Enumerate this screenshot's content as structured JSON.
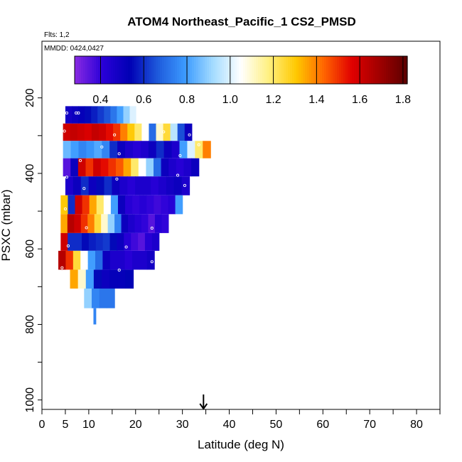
{
  "chart_data": {
    "type": "heatmap",
    "title": "ATOM4 Northeast_Pacific_1 CS2_PMSD",
    "flights_label": "Flts: 1,2",
    "mmdd_label": "MMDD: 0424,0427",
    "xlabel": "Latitude (deg N)",
    "ylabel": "PSXC (mbar)",
    "xlim": [
      0,
      85
    ],
    "ylim": [
      1025,
      50
    ],
    "x_ticks": [
      0,
      5,
      10,
      20,
      30,
      40,
      50,
      60,
      70,
      80
    ],
    "y_ticks": [
      200,
      400,
      600,
      800,
      1000
    ],
    "arrow_latitude": 34.5,
    "colorbar": {
      "range": [
        0.28,
        1.82
      ],
      "ticks": [
        0.4,
        0.6,
        0.8,
        1.0,
        1.2,
        1.4,
        1.6,
        1.8
      ],
      "tick_labels": [
        "0.4",
        "0.6",
        "0.8",
        "1.0",
        "1.2",
        "1.4",
        "1.6",
        "1.8"
      ],
      "colors": [
        "#8a2be2",
        "#2a00d8",
        "#0000b4",
        "#1e5adc",
        "#3c9bff",
        "#a5dcff",
        "#ffffff",
        "#fff080",
        "#ffc800",
        "#ff6400",
        "#e10000",
        "#a00000",
        "#5a0000"
      ]
    },
    "rows": [
      {
        "p_top": 222,
        "p_bot": 268,
        "lat_start": 5,
        "lat_end": 21.5,
        "values": [
          0.48,
          0.5,
          0.52,
          0.55,
          0.58,
          0.62,
          0.66,
          0.72,
          0.8,
          0.9,
          1.0,
          1.05
        ]
      },
      {
        "p_top": 268,
        "p_bot": 314,
        "lat_start": 4.5,
        "lat_end": 32,
        "values": [
          1.6,
          1.62,
          1.6,
          1.58,
          1.62,
          1.6,
          1.55,
          1.5,
          1.4,
          1.3,
          1.2,
          1.05,
          0.7,
          1.1,
          1.25,
          0.95,
          0.65,
          0.5
        ]
      },
      {
        "p_top": 314,
        "p_bot": 360,
        "lat_start": 4.5,
        "lat_end": 36,
        "values": [
          0.85,
          0.8,
          0.75,
          0.78,
          0.82,
          0.75,
          0.6,
          0.5,
          0.45,
          0.42,
          0.45,
          0.5,
          0.6,
          0.5,
          0.45,
          0.8,
          1.0,
          1.2,
          1.4
        ]
      },
      {
        "p_top": 360,
        "p_bot": 408,
        "lat_start": 4.5,
        "lat_end": 33.5,
        "values": [
          0.35,
          0.5,
          1.6,
          1.5,
          1.6,
          1.55,
          1.5,
          1.45,
          1.35,
          1.2,
          1.05,
          0.9,
          0.7,
          0.5,
          0.45,
          0.42,
          0.45,
          0.5
        ]
      },
      {
        "p_top": 408,
        "p_bot": 458,
        "lat_start": 5,
        "lat_end": 31.5,
        "values": [
          0.45,
          0.5,
          0.6,
          0.5,
          0.55,
          0.6,
          0.5,
          0.45,
          0.42,
          0.45,
          0.45,
          0.42,
          0.45,
          0.48,
          0.5,
          0.45
        ]
      },
      {
        "p_top": 458,
        "p_bot": 508,
        "lat_start": 4,
        "lat_end": 30,
        "values": [
          1.3,
          0.6,
          1.6,
          1.5,
          1.35,
          1.2,
          1.05,
          0.8,
          0.5,
          0.42,
          0.4,
          0.42,
          0.4,
          0.38,
          0.4,
          0.42,
          0.8
        ]
      },
      {
        "p_top": 508,
        "p_bot": 558,
        "lat_start": 4,
        "lat_end": 27,
        "values": [
          1.35,
          1.65,
          1.6,
          1.5,
          1.4,
          1.25,
          1.1,
          0.9,
          0.75,
          0.5,
          0.45,
          0.42,
          0.4,
          0.35,
          0.42,
          0.4
        ]
      },
      {
        "p_top": 558,
        "p_bot": 605,
        "lat_start": 4,
        "lat_end": 25,
        "values": [
          1.6,
          0.6,
          0.6,
          0.55,
          0.58,
          0.6,
          0.62,
          0.55,
          0.5,
          0.42,
          0.38,
          0.35,
          0.42,
          0.45
        ]
      },
      {
        "p_top": 605,
        "p_bot": 655,
        "lat_start": 3.5,
        "lat_end": 24,
        "values": [
          1.65,
          1.5,
          1.25,
          1.05,
          0.8,
          0.7,
          0.5,
          0.45,
          0.45,
          0.42,
          0.45,
          0.45,
          0.48
        ]
      },
      {
        "p_top": 655,
        "p_bot": 705,
        "lat_start": 6,
        "lat_end": 19.5,
        "values": [
          1.35,
          1.1,
          0.8,
          0.55,
          0.5,
          0.52,
          0.52,
          0.54
        ]
      },
      {
        "p_top": 705,
        "p_bot": 757,
        "lat_start": 9,
        "lat_end": 15.5,
        "values": [
          0.9,
          0.75,
          0.72,
          0.72
        ]
      },
      {
        "p_top": 757,
        "p_bot": 800,
        "lat_start": 11,
        "lat_end": 11.5,
        "values": [
          0.75
        ]
      }
    ],
    "markers": [
      [
        5.3,
        240
      ],
      [
        7.3,
        240
      ],
      [
        7.8,
        240
      ],
      [
        21,
        238
      ],
      [
        4.8,
        288
      ],
      [
        15.5,
        298
      ],
      [
        26,
        290
      ],
      [
        31.5,
        298
      ],
      [
        12.8,
        330
      ],
      [
        33.5,
        324
      ],
      [
        8.2,
        366
      ],
      [
        16.5,
        348
      ],
      [
        29.5,
        353
      ],
      [
        5.3,
        410
      ],
      [
        16,
        415
      ],
      [
        29,
        405
      ],
      [
        9,
        440
      ],
      [
        30.5,
        432
      ],
      [
        5,
        494
      ],
      [
        14,
        484
      ],
      [
        9.5,
        544
      ],
      [
        23.5,
        545
      ],
      [
        5.6,
        592
      ],
      [
        18,
        595
      ],
      [
        9.5,
        639
      ],
      [
        16.5,
        656
      ],
      [
        23.5,
        634
      ],
      [
        4.3,
        650
      ],
      [
        11.5,
        810
      ]
    ]
  }
}
